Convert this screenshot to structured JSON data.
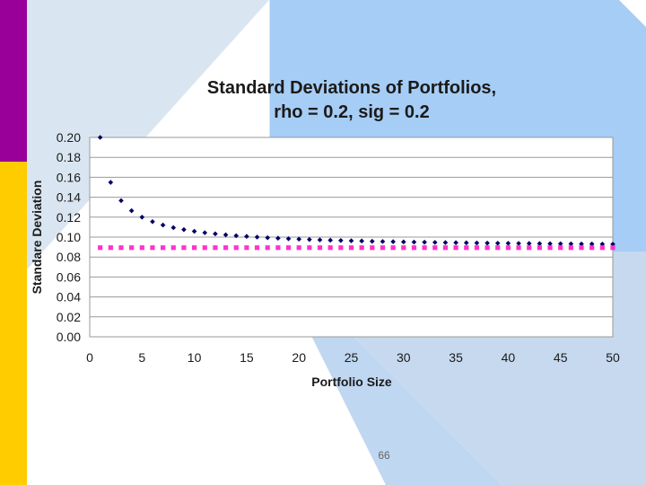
{
  "slide": {
    "page_number": "66",
    "colors": {
      "sidebar_purple": "#990099",
      "sidebar_yellow": "#FFCC00",
      "background_blue": "#A6CDF5",
      "background_light": "#D9E6F2"
    }
  },
  "chart_data": {
    "type": "scatter",
    "title_line1": "Standard Deviations of Portfolios,",
    "title_line2": "rho = 0.2, sig = 0.2",
    "xlabel": "Portfolio Size",
    "ylabel": "Standare Deviation",
    "xlim": [
      0,
      50
    ],
    "ylim": [
      0,
      0.2
    ],
    "x_ticks": [
      "0",
      "5",
      "10",
      "15",
      "20",
      "25",
      "30",
      "35",
      "40",
      "45",
      "50"
    ],
    "y_ticks": [
      "0.00",
      "0.02",
      "0.04",
      "0.06",
      "0.08",
      "0.10",
      "0.12",
      "0.14",
      "0.16",
      "0.18",
      "0.20"
    ],
    "grid": true,
    "legend": "none",
    "series": [
      {
        "color": "#000066",
        "marker": "diamond",
        "x": [
          1,
          2,
          3,
          4,
          5,
          6,
          7,
          8,
          9,
          10,
          11,
          12,
          13,
          14,
          15,
          16,
          17,
          18,
          19,
          20,
          21,
          22,
          23,
          24,
          25,
          26,
          27,
          28,
          29,
          30,
          31,
          32,
          33,
          34,
          35,
          36,
          37,
          38,
          39,
          40,
          41,
          42,
          43,
          44,
          45,
          46,
          47,
          48,
          49,
          50
        ],
        "y": [
          0.2,
          0.1549,
          0.1366,
          0.1265,
          0.12,
          0.1155,
          0.1121,
          0.1095,
          0.1075,
          0.1058,
          0.1044,
          0.1033,
          0.1023,
          0.1014,
          0.1007,
          0.1,
          0.0994,
          0.0989,
          0.0984,
          0.098,
          0.0976,
          0.0972,
          0.0969,
          0.0966,
          0.0963,
          0.0961,
          0.0958,
          0.0956,
          0.0954,
          0.0952,
          0.095,
          0.0949,
          0.0947,
          0.0945,
          0.0944,
          0.0943,
          0.0941,
          0.094,
          0.0939,
          0.0938,
          0.0937,
          0.0936,
          0.0935,
          0.0934,
          0.0933,
          0.0932,
          0.0931,
          0.0931,
          0.093,
          0.0929
        ]
      },
      {
        "color": "#FF33CC",
        "marker": "square",
        "x": [
          1,
          2,
          3,
          4,
          5,
          6,
          7,
          8,
          9,
          10,
          11,
          12,
          13,
          14,
          15,
          16,
          17,
          18,
          19,
          20,
          21,
          22,
          23,
          24,
          25,
          26,
          27,
          28,
          29,
          30,
          31,
          32,
          33,
          34,
          35,
          36,
          37,
          38,
          39,
          40,
          41,
          42,
          43,
          44,
          45,
          46,
          47,
          48,
          49,
          50
        ],
        "y": [
          0.0894,
          0.0894,
          0.0894,
          0.0894,
          0.0894,
          0.0894,
          0.0894,
          0.0894,
          0.0894,
          0.0894,
          0.0894,
          0.0894,
          0.0894,
          0.0894,
          0.0894,
          0.0894,
          0.0894,
          0.0894,
          0.0894,
          0.0894,
          0.0894,
          0.0894,
          0.0894,
          0.0894,
          0.0894,
          0.0894,
          0.0894,
          0.0894,
          0.0894,
          0.0894,
          0.0894,
          0.0894,
          0.0894,
          0.0894,
          0.0894,
          0.0894,
          0.0894,
          0.0894,
          0.0894,
          0.0894,
          0.0894,
          0.0894,
          0.0894,
          0.0894,
          0.0894,
          0.0894,
          0.0894,
          0.0894,
          0.0894,
          0.0894
        ]
      }
    ]
  }
}
